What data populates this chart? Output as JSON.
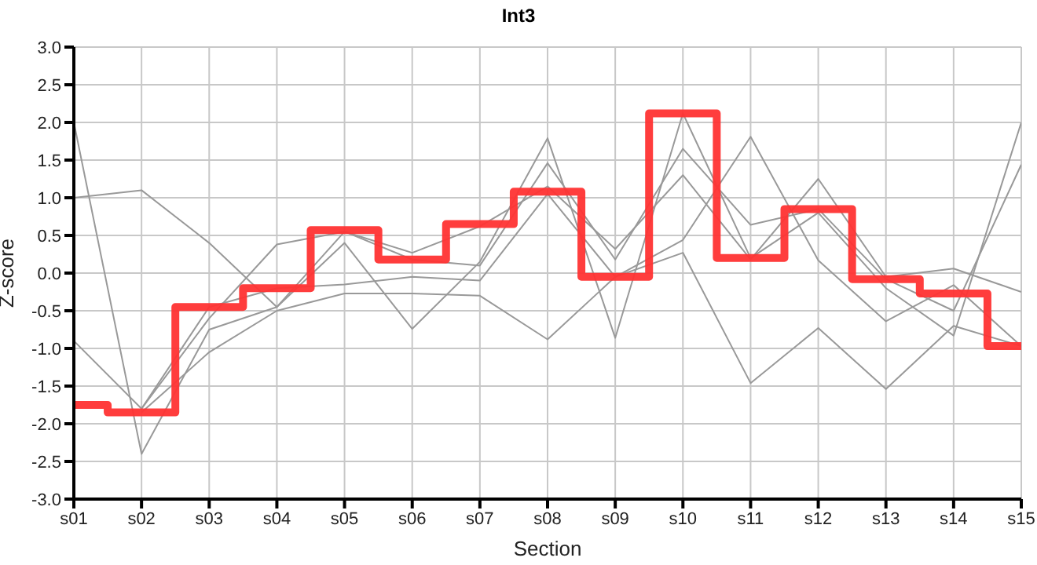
{
  "chart_data": {
    "type": "line",
    "title": "Int3",
    "xlabel": "Section",
    "ylabel": "Z-score",
    "categories": [
      "s01",
      "s02",
      "s03",
      "s04",
      "s05",
      "s06",
      "s07",
      "s08",
      "s09",
      "s10",
      "s11",
      "s12",
      "s13",
      "s14",
      "s15"
    ],
    "series": [
      {
        "color": "#999999",
        "values": [
          2.0,
          -2.4,
          -0.75,
          -0.45,
          0.4,
          -0.74,
          0.15,
          1.79,
          -0.86,
          2.12,
          0.2,
          0.8,
          -0.2,
          -0.83,
          2.0
        ]
      },
      {
        "color": "#999999",
        "values": [
          1.0,
          1.1,
          0.4,
          -0.45,
          0.55,
          0.18,
          0.1,
          1.46,
          0.18,
          1.65,
          0.64,
          0.85,
          -0.08,
          -0.5,
          1.44
        ]
      },
      {
        "color": "#999999",
        "values": [
          -0.9,
          -1.8,
          -0.6,
          0.38,
          0.55,
          0.27,
          0.62,
          1.15,
          0.32,
          1.3,
          0.18,
          1.25,
          -0.05,
          0.06,
          -0.25
        ]
      },
      {
        "color": "#999999",
        "values": [
          null,
          -1.8,
          -0.45,
          -0.2,
          -0.15,
          -0.05,
          -0.1,
          1.05,
          -0.05,
          0.44,
          1.81,
          0.17,
          -0.64,
          -0.16,
          -0.97
        ]
      },
      {
        "color": "#999999",
        "values": [
          null,
          -1.85,
          -1.05,
          -0.5,
          -0.27,
          -0.27,
          -0.3,
          -0.88,
          -0.05,
          0.27,
          -1.46,
          -0.73,
          -1.54,
          -0.7,
          -0.97
        ]
      },
      {
        "type": "step",
        "color": "#ff3333",
        "values": [
          -1.75,
          -1.85,
          -0.45,
          -0.2,
          0.57,
          0.18,
          0.65,
          1.08,
          -0.05,
          2.12,
          0.2,
          0.85,
          -0.08,
          -0.27,
          -0.97
        ]
      }
    ],
    "ylim": [
      -3.0,
      3.0
    ],
    "yticks": [
      {
        "value": -3,
        "label": "-3.0"
      },
      {
        "value": -2.5,
        "label": "-2.5"
      },
      {
        "value": -2,
        "label": "-2.0"
      },
      {
        "value": -1.5,
        "label": "-1.5"
      },
      {
        "value": -1,
        "label": "-1.0"
      },
      {
        "value": -0.5,
        "label": "-0.5"
      },
      {
        "value": 0,
        "label": "0.0"
      },
      {
        "value": 0.5,
        "label": "0.5"
      },
      {
        "value": 1,
        "label": "1.0"
      },
      {
        "value": 1.5,
        "label": "1.5"
      },
      {
        "value": 2,
        "label": "2.0"
      },
      {
        "value": 2.5,
        "label": "2.5"
      },
      {
        "value": 3,
        "label": "3.0"
      }
    ],
    "grid": true,
    "marker": "none"
  }
}
